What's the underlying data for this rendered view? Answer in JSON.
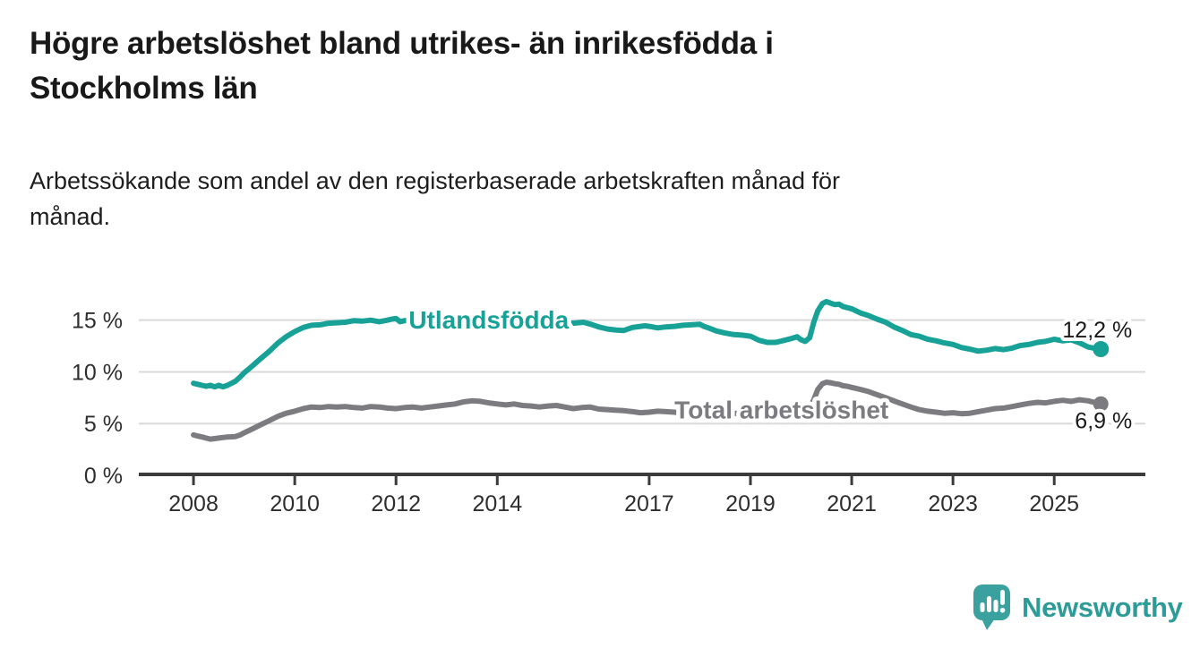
{
  "header": {
    "title": "Högre arbetslöshet bland utrikes- än inrikesfödda i Stockholms län",
    "title_lines": [
      "Högre arbetslöshet bland utrikes- än inrikesfödda i",
      "Stockholms län"
    ],
    "subtitle": "Arbetssökande som andel av den registerbaserade arbetskraften månad för månad.",
    "subtitle_lines": [
      "Arbetssökande som andel av den registerbaserade arbetskraften månad för",
      "månad."
    ]
  },
  "footer": {
    "brand_name": "Newsworthy",
    "logo_icon": "bar-chart-speech-bubble-icon",
    "brand_text_color": "#2d9c98",
    "icon_color": "#3ba19e"
  },
  "colors": {
    "teal": "#17a197",
    "gray": "#7b7b80",
    "grid": "#d9d9d9",
    "axis": "#3b3b3b",
    "text": "#1a1a1a",
    "background": "#ffffff"
  },
  "chart_data": {
    "type": "line",
    "title": "Högre arbetslöshet bland utrikes- än inrikesfödda i Stockholms län",
    "subtitle": "Arbetssökande som andel av den registerbaserade arbetskraften månad för månad.",
    "unit": "%",
    "grid": "horizontal",
    "legend_position": "inline-labels",
    "xlim": [
      2006.92,
      2026.8
    ],
    "ylim": [
      0,
      18
    ],
    "x_ticks": [
      2008,
      2010,
      2012,
      2014,
      2017,
      2019,
      2021,
      2023,
      2025
    ],
    "x_tick_labels": [
      "2008",
      "2010",
      "2012",
      "2014",
      "2017",
      "2019",
      "2021",
      "2023",
      "2025"
    ],
    "y_ticks": [
      {
        "value": 0,
        "label": "0 %"
      },
      {
        "value": 5,
        "label": "5 %"
      },
      {
        "value": 10,
        "label": "10 %"
      },
      {
        "value": 15,
        "label": "15 %"
      }
    ],
    "series": [
      {
        "name": "Utlandsfödda",
        "color": "#17a197",
        "end_label": "12,2 %",
        "end_value": 12.2,
        "end_label_position": "above",
        "dot_radius": 9,
        "inline_label": {
          "year": 2012.25,
          "value": 15.05
        },
        "points": [
          [
            2008.0,
            8.9
          ],
          [
            2008.08,
            8.8
          ],
          [
            2008.17,
            8.7
          ],
          [
            2008.25,
            8.6
          ],
          [
            2008.33,
            8.7
          ],
          [
            2008.42,
            8.55
          ],
          [
            2008.5,
            8.7
          ],
          [
            2008.58,
            8.55
          ],
          [
            2008.67,
            8.7
          ],
          [
            2008.75,
            8.9
          ],
          [
            2008.83,
            9.1
          ],
          [
            2008.92,
            9.5
          ],
          [
            2009.0,
            9.9
          ],
          [
            2009.17,
            10.6
          ],
          [
            2009.33,
            11.3
          ],
          [
            2009.5,
            12.0
          ],
          [
            2009.67,
            12.8
          ],
          [
            2009.83,
            13.4
          ],
          [
            2010.0,
            13.9
          ],
          [
            2010.17,
            14.3
          ],
          [
            2010.33,
            14.5
          ],
          [
            2010.5,
            14.55
          ],
          [
            2010.67,
            14.7
          ],
          [
            2010.83,
            14.75
          ],
          [
            2011.0,
            14.8
          ],
          [
            2011.17,
            14.95
          ],
          [
            2011.33,
            14.9
          ],
          [
            2011.5,
            15.0
          ],
          [
            2011.67,
            14.85
          ],
          [
            2011.83,
            15.0
          ],
          [
            2011.92,
            15.1
          ],
          [
            2012.0,
            15.15
          ],
          [
            2012.08,
            14.85
          ],
          [
            2012.17,
            14.95
          ],
          [
            2012.33,
            15.0
          ],
          [
            2012.5,
            15.0
          ],
          [
            2012.67,
            14.95
          ],
          [
            2012.83,
            15.0
          ],
          [
            2013.0,
            15.0
          ],
          [
            2013.25,
            15.05
          ],
          [
            2013.5,
            15.1
          ],
          [
            2013.75,
            14.95
          ],
          [
            2014.0,
            14.9
          ],
          [
            2014.25,
            14.85
          ],
          [
            2014.5,
            14.9
          ],
          [
            2014.75,
            14.8
          ],
          [
            2015.0,
            14.8
          ],
          [
            2015.25,
            14.75
          ],
          [
            2015.5,
            14.7
          ],
          [
            2015.7,
            14.8
          ],
          [
            2015.85,
            14.6
          ],
          [
            2016.0,
            14.35
          ],
          [
            2016.17,
            14.15
          ],
          [
            2016.33,
            14.05
          ],
          [
            2016.5,
            14.0
          ],
          [
            2016.67,
            14.3
          ],
          [
            2016.83,
            14.4
          ],
          [
            2016.92,
            14.45
          ],
          [
            2017.0,
            14.4
          ],
          [
            2017.17,
            14.25
          ],
          [
            2017.33,
            14.35
          ],
          [
            2017.5,
            14.4
          ],
          [
            2017.67,
            14.5
          ],
          [
            2017.83,
            14.55
          ],
          [
            2018.0,
            14.6
          ],
          [
            2018.08,
            14.4
          ],
          [
            2018.17,
            14.25
          ],
          [
            2018.33,
            13.95
          ],
          [
            2018.5,
            13.75
          ],
          [
            2018.67,
            13.6
          ],
          [
            2018.83,
            13.55
          ],
          [
            2019.0,
            13.45
          ],
          [
            2019.17,
            13.05
          ],
          [
            2019.33,
            12.85
          ],
          [
            2019.5,
            12.85
          ],
          [
            2019.67,
            13.05
          ],
          [
            2019.83,
            13.25
          ],
          [
            2019.92,
            13.4
          ],
          [
            2020.0,
            13.1
          ],
          [
            2020.08,
            12.95
          ],
          [
            2020.17,
            13.3
          ],
          [
            2020.25,
            14.8
          ],
          [
            2020.33,
            15.9
          ],
          [
            2020.42,
            16.6
          ],
          [
            2020.5,
            16.8
          ],
          [
            2020.58,
            16.65
          ],
          [
            2020.67,
            16.5
          ],
          [
            2020.75,
            16.55
          ],
          [
            2020.83,
            16.3
          ],
          [
            2020.92,
            16.2
          ],
          [
            2021.0,
            16.1
          ],
          [
            2021.17,
            15.7
          ],
          [
            2021.33,
            15.45
          ],
          [
            2021.5,
            15.1
          ],
          [
            2021.67,
            14.8
          ],
          [
            2021.83,
            14.35
          ],
          [
            2022.0,
            14.0
          ],
          [
            2022.17,
            13.6
          ],
          [
            2022.33,
            13.45
          ],
          [
            2022.5,
            13.15
          ],
          [
            2022.67,
            13.0
          ],
          [
            2022.83,
            12.8
          ],
          [
            2023.0,
            12.65
          ],
          [
            2023.17,
            12.35
          ],
          [
            2023.33,
            12.2
          ],
          [
            2023.5,
            12.0
          ],
          [
            2023.67,
            12.1
          ],
          [
            2023.83,
            12.25
          ],
          [
            2024.0,
            12.15
          ],
          [
            2024.17,
            12.3
          ],
          [
            2024.33,
            12.55
          ],
          [
            2024.5,
            12.65
          ],
          [
            2024.67,
            12.85
          ],
          [
            2024.83,
            12.95
          ],
          [
            2025.0,
            13.15
          ],
          [
            2025.17,
            13.0
          ],
          [
            2025.33,
            13.1
          ],
          [
            2025.5,
            12.8
          ],
          [
            2025.67,
            12.4
          ],
          [
            2025.83,
            12.25
          ],
          [
            2025.92,
            12.2
          ]
        ]
      },
      {
        "name": "Total arbetslöshet",
        "color": "#7b7b80",
        "end_label": "6,9 %",
        "end_value": 6.9,
        "end_label_position": "below",
        "dot_radius": 8.5,
        "inline_label": {
          "year": 2017.5,
          "value": 6.35
        },
        "points": [
          [
            2008.0,
            3.9
          ],
          [
            2008.08,
            3.8
          ],
          [
            2008.17,
            3.7
          ],
          [
            2008.25,
            3.6
          ],
          [
            2008.33,
            3.5
          ],
          [
            2008.42,
            3.55
          ],
          [
            2008.5,
            3.6
          ],
          [
            2008.67,
            3.7
          ],
          [
            2008.83,
            3.75
          ],
          [
            2008.92,
            3.9
          ],
          [
            2009.0,
            4.1
          ],
          [
            2009.17,
            4.5
          ],
          [
            2009.33,
            4.9
          ],
          [
            2009.5,
            5.3
          ],
          [
            2009.67,
            5.7
          ],
          [
            2009.83,
            6.0
          ],
          [
            2010.0,
            6.2
          ],
          [
            2010.17,
            6.45
          ],
          [
            2010.33,
            6.6
          ],
          [
            2010.5,
            6.55
          ],
          [
            2010.67,
            6.65
          ],
          [
            2010.83,
            6.6
          ],
          [
            2011.0,
            6.65
          ],
          [
            2011.17,
            6.55
          ],
          [
            2011.33,
            6.5
          ],
          [
            2011.5,
            6.65
          ],
          [
            2011.67,
            6.6
          ],
          [
            2011.83,
            6.5
          ],
          [
            2012.0,
            6.45
          ],
          [
            2012.17,
            6.55
          ],
          [
            2012.33,
            6.6
          ],
          [
            2012.5,
            6.5
          ],
          [
            2012.67,
            6.6
          ],
          [
            2012.83,
            6.7
          ],
          [
            2013.0,
            6.8
          ],
          [
            2013.17,
            6.9
          ],
          [
            2013.33,
            7.1
          ],
          [
            2013.5,
            7.2
          ],
          [
            2013.67,
            7.15
          ],
          [
            2013.83,
            7.0
          ],
          [
            2014.0,
            6.9
          ],
          [
            2014.17,
            6.8
          ],
          [
            2014.33,
            6.9
          ],
          [
            2014.5,
            6.75
          ],
          [
            2014.67,
            6.7
          ],
          [
            2014.83,
            6.6
          ],
          [
            2015.0,
            6.7
          ],
          [
            2015.17,
            6.75
          ],
          [
            2015.33,
            6.6
          ],
          [
            2015.5,
            6.45
          ],
          [
            2015.67,
            6.55
          ],
          [
            2015.83,
            6.6
          ],
          [
            2016.0,
            6.4
          ],
          [
            2016.17,
            6.35
          ],
          [
            2016.33,
            6.3
          ],
          [
            2016.5,
            6.25
          ],
          [
            2016.67,
            6.15
          ],
          [
            2016.83,
            6.05
          ],
          [
            2017.0,
            6.1
          ],
          [
            2017.17,
            6.2
          ],
          [
            2017.33,
            6.15
          ],
          [
            2017.5,
            6.1
          ],
          [
            2017.67,
            6.0
          ],
          [
            2017.83,
            5.95
          ],
          [
            2018.0,
            6.0
          ],
          [
            2018.25,
            6.05
          ],
          [
            2018.5,
            5.95
          ],
          [
            2018.75,
            6.0
          ],
          [
            2019.0,
            6.05
          ],
          [
            2019.25,
            6.0
          ],
          [
            2019.5,
            6.05
          ],
          [
            2019.75,
            6.1
          ],
          [
            2020.0,
            6.15
          ],
          [
            2020.17,
            6.5
          ],
          [
            2020.25,
            7.3
          ],
          [
            2020.33,
            8.3
          ],
          [
            2020.42,
            8.85
          ],
          [
            2020.5,
            9.0
          ],
          [
            2020.58,
            8.95
          ],
          [
            2020.67,
            8.85
          ],
          [
            2020.75,
            8.8
          ],
          [
            2020.83,
            8.65
          ],
          [
            2020.92,
            8.6
          ],
          [
            2021.0,
            8.5
          ],
          [
            2021.17,
            8.3
          ],
          [
            2021.33,
            8.1
          ],
          [
            2021.5,
            7.8
          ],
          [
            2021.67,
            7.5
          ],
          [
            2021.83,
            7.2
          ],
          [
            2022.0,
            6.9
          ],
          [
            2022.17,
            6.6
          ],
          [
            2022.33,
            6.35
          ],
          [
            2022.5,
            6.2
          ],
          [
            2022.67,
            6.1
          ],
          [
            2022.83,
            6.0
          ],
          [
            2023.0,
            6.05
          ],
          [
            2023.17,
            5.95
          ],
          [
            2023.33,
            6.0
          ],
          [
            2023.5,
            6.15
          ],
          [
            2023.67,
            6.3
          ],
          [
            2023.83,
            6.45
          ],
          [
            2024.0,
            6.5
          ],
          [
            2024.17,
            6.65
          ],
          [
            2024.33,
            6.8
          ],
          [
            2024.5,
            6.95
          ],
          [
            2024.67,
            7.05
          ],
          [
            2024.83,
            7.0
          ],
          [
            2025.0,
            7.15
          ],
          [
            2025.17,
            7.25
          ],
          [
            2025.33,
            7.15
          ],
          [
            2025.5,
            7.3
          ],
          [
            2025.67,
            7.2
          ],
          [
            2025.83,
            7.0
          ],
          [
            2025.92,
            6.9
          ]
        ]
      }
    ]
  }
}
